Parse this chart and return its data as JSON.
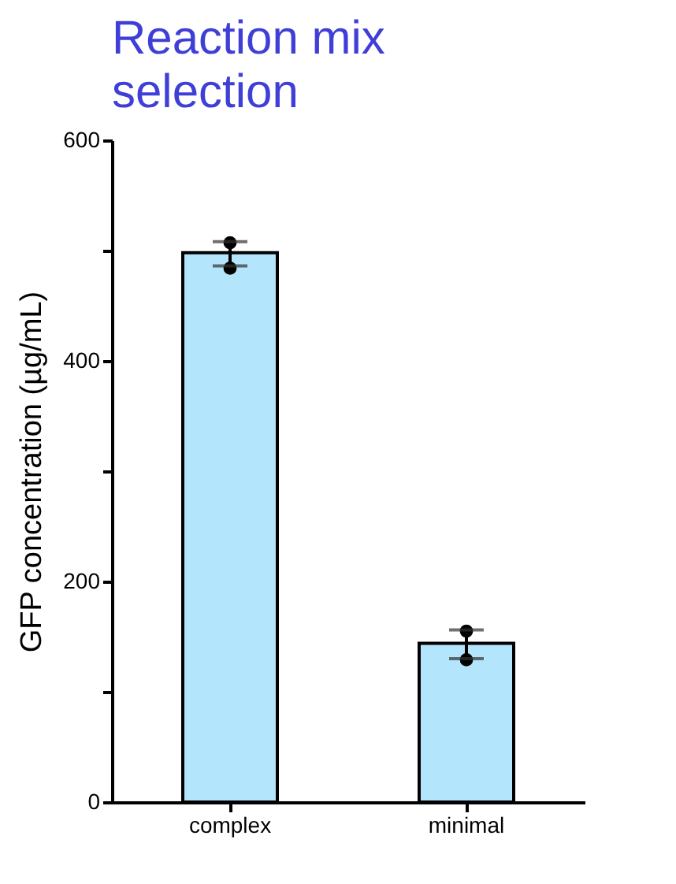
{
  "chart_data": {
    "type": "bar",
    "title": "Reaction mix selection",
    "ylabel": "GFP concentration (µg/mL)",
    "categories": [
      "complex",
      "minimal"
    ],
    "series": [
      {
        "color": "#b3e5fc",
        "values": [
          498,
          144
        ],
        "errors": [
          [
            486,
            508
          ],
          [
            130,
            156
          ]
        ]
      },
      {
        "type": "scatter",
        "color": "#000000",
        "x": [
          "complex",
          "complex",
          "minimal",
          "minimal"
        ],
        "values": [
          507,
          484,
          155,
          129
        ]
      }
    ],
    "ylim": [
      0,
      600
    ],
    "yticks": [
      0,
      {
        "value": 100,
        "label": null
      },
      200,
      {
        "value": 300,
        "label": null
      },
      400,
      {
        "value": 500,
        "label": null
      },
      600
    ],
    "grid": false,
    "marker": "circle"
  }
}
